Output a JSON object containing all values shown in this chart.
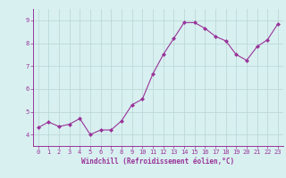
{
  "x": [
    0,
    1,
    2,
    3,
    4,
    5,
    6,
    7,
    8,
    9,
    10,
    11,
    12,
    13,
    14,
    15,
    16,
    17,
    18,
    19,
    20,
    21,
    22,
    23
  ],
  "y": [
    4.3,
    4.55,
    4.35,
    4.45,
    4.7,
    4.0,
    4.2,
    4.2,
    4.6,
    5.3,
    5.55,
    6.65,
    7.5,
    8.2,
    8.9,
    8.9,
    8.65,
    8.3,
    8.1,
    7.5,
    7.25,
    7.85,
    8.15,
    8.85
  ],
  "line_color": "#993399",
  "marker": "D",
  "marker_size": 2.0,
  "line_width": 0.8,
  "bg_color": "#d8f0f0",
  "grid_color": "#b8d4d4",
  "axis_color": "#993399",
  "tick_label_color": "#993399",
  "xlabel": "Windchill (Refroidissement éolien,°C)",
  "xlabel_fontsize": 5.5,
  "xlim": [
    -0.5,
    23.5
  ],
  "ylim": [
    3.5,
    9.5
  ],
  "yticks": [
    4,
    5,
    6,
    7,
    8,
    9
  ],
  "xticks": [
    0,
    1,
    2,
    3,
    4,
    5,
    6,
    7,
    8,
    9,
    10,
    11,
    12,
    13,
    14,
    15,
    16,
    17,
    18,
    19,
    20,
    21,
    22,
    23
  ],
  "tick_fontsize": 5.0
}
